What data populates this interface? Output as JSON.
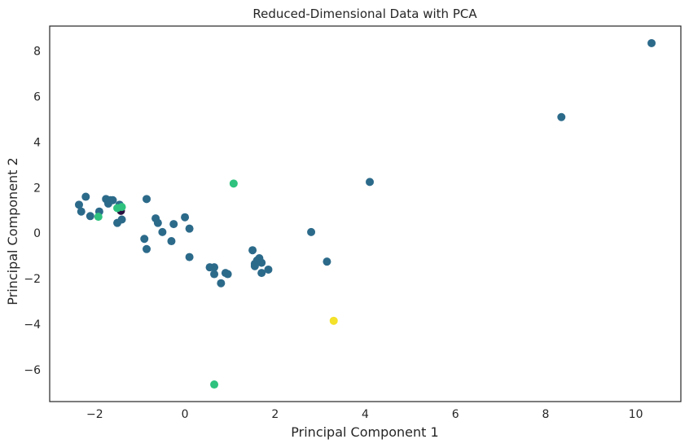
{
  "chart_data": {
    "type": "scatter",
    "title": "Reduced-Dimensional Data with PCA",
    "xlabel": "Principal Component 1",
    "ylabel": "Principal Component 2",
    "xlim": [
      -3.0,
      11.0
    ],
    "ylim": [
      -7.4,
      9.1
    ],
    "xticks": [
      -2,
      0,
      2,
      4,
      6,
      8,
      10
    ],
    "yticks": [
      -6,
      -4,
      -2,
      0,
      2,
      4,
      6,
      8
    ],
    "grid": false,
    "colors": {
      "cluster_main": "#2c6a8a",
      "cluster_green": "#2ec27e",
      "cluster_yellow": "#f3e12a",
      "cluster_dark": "#2a1040"
    },
    "points": [
      {
        "x": 10.35,
        "y": 8.35,
        "c": "cluster_main"
      },
      {
        "x": 8.35,
        "y": 5.1,
        "c": "cluster_main"
      },
      {
        "x": 4.1,
        "y": 2.25,
        "c": "cluster_main"
      },
      {
        "x": 2.8,
        "y": 0.05,
        "c": "cluster_main"
      },
      {
        "x": 3.15,
        "y": -1.25,
        "c": "cluster_main"
      },
      {
        "x": 1.5,
        "y": -0.75,
        "c": "cluster_main"
      },
      {
        "x": 1.55,
        "y": -1.35,
        "c": "cluster_main"
      },
      {
        "x": 1.6,
        "y": -1.2,
        "c": "cluster_main"
      },
      {
        "x": 1.65,
        "y": -1.1,
        "c": "cluster_main"
      },
      {
        "x": 1.7,
        "y": -1.3,
        "c": "cluster_main"
      },
      {
        "x": 1.7,
        "y": -1.75,
        "c": "cluster_main"
      },
      {
        "x": 1.85,
        "y": -1.6,
        "c": "cluster_main"
      },
      {
        "x": 1.55,
        "y": -1.45,
        "c": "cluster_main"
      },
      {
        "x": 0.55,
        "y": -1.5,
        "c": "cluster_main"
      },
      {
        "x": 0.65,
        "y": -1.5,
        "c": "cluster_main"
      },
      {
        "x": 0.65,
        "y": -1.8,
        "c": "cluster_main"
      },
      {
        "x": 0.9,
        "y": -1.75,
        "c": "cluster_main"
      },
      {
        "x": 0.95,
        "y": -1.8,
        "c": "cluster_main"
      },
      {
        "x": 0.8,
        "y": -2.2,
        "c": "cluster_main"
      },
      {
        "x": 0.1,
        "y": -1.05,
        "c": "cluster_main"
      },
      {
        "x": 0.0,
        "y": 0.7,
        "c": "cluster_main"
      },
      {
        "x": 0.1,
        "y": 0.2,
        "c": "cluster_main"
      },
      {
        "x": -0.25,
        "y": 0.4,
        "c": "cluster_main"
      },
      {
        "x": -0.3,
        "y": -0.35,
        "c": "cluster_main"
      },
      {
        "x": -0.5,
        "y": 0.05,
        "c": "cluster_main"
      },
      {
        "x": -0.65,
        "y": 0.65,
        "c": "cluster_main"
      },
      {
        "x": -0.6,
        "y": 0.45,
        "c": "cluster_main"
      },
      {
        "x": -0.85,
        "y": 1.5,
        "c": "cluster_main"
      },
      {
        "x": -0.9,
        "y": -0.25,
        "c": "cluster_main"
      },
      {
        "x": -0.85,
        "y": -0.7,
        "c": "cluster_main"
      },
      {
        "x": -1.4,
        "y": 0.6,
        "c": "cluster_main"
      },
      {
        "x": -1.5,
        "y": 0.45,
        "c": "cluster_main"
      },
      {
        "x": -1.45,
        "y": 1.25,
        "c": "cluster_main"
      },
      {
        "x": -1.65,
        "y": 1.45,
        "c": "cluster_main"
      },
      {
        "x": -1.7,
        "y": 1.3,
        "c": "cluster_main"
      },
      {
        "x": -1.75,
        "y": 1.5,
        "c": "cluster_main"
      },
      {
        "x": -1.9,
        "y": 0.95,
        "c": "cluster_main"
      },
      {
        "x": -2.1,
        "y": 0.75,
        "c": "cluster_main"
      },
      {
        "x": -2.2,
        "y": 1.6,
        "c": "cluster_main"
      },
      {
        "x": -2.3,
        "y": 0.95,
        "c": "cluster_main"
      },
      {
        "x": -2.35,
        "y": 1.25,
        "c": "cluster_main"
      },
      {
        "x": -1.6,
        "y": 1.45,
        "c": "cluster_main"
      },
      {
        "x": -1.42,
        "y": 0.98,
        "c": "cluster_dark"
      },
      {
        "x": -1.5,
        "y": 1.1,
        "c": "cluster_green"
      },
      {
        "x": -1.4,
        "y": 1.15,
        "c": "cluster_green"
      },
      {
        "x": -1.92,
        "y": 0.72,
        "c": "cluster_green"
      },
      {
        "x": 1.08,
        "y": 2.18,
        "c": "cluster_green"
      },
      {
        "x": 0.65,
        "y": -6.65,
        "c": "cluster_green"
      },
      {
        "x": 3.3,
        "y": -3.85,
        "c": "cluster_yellow"
      }
    ]
  }
}
